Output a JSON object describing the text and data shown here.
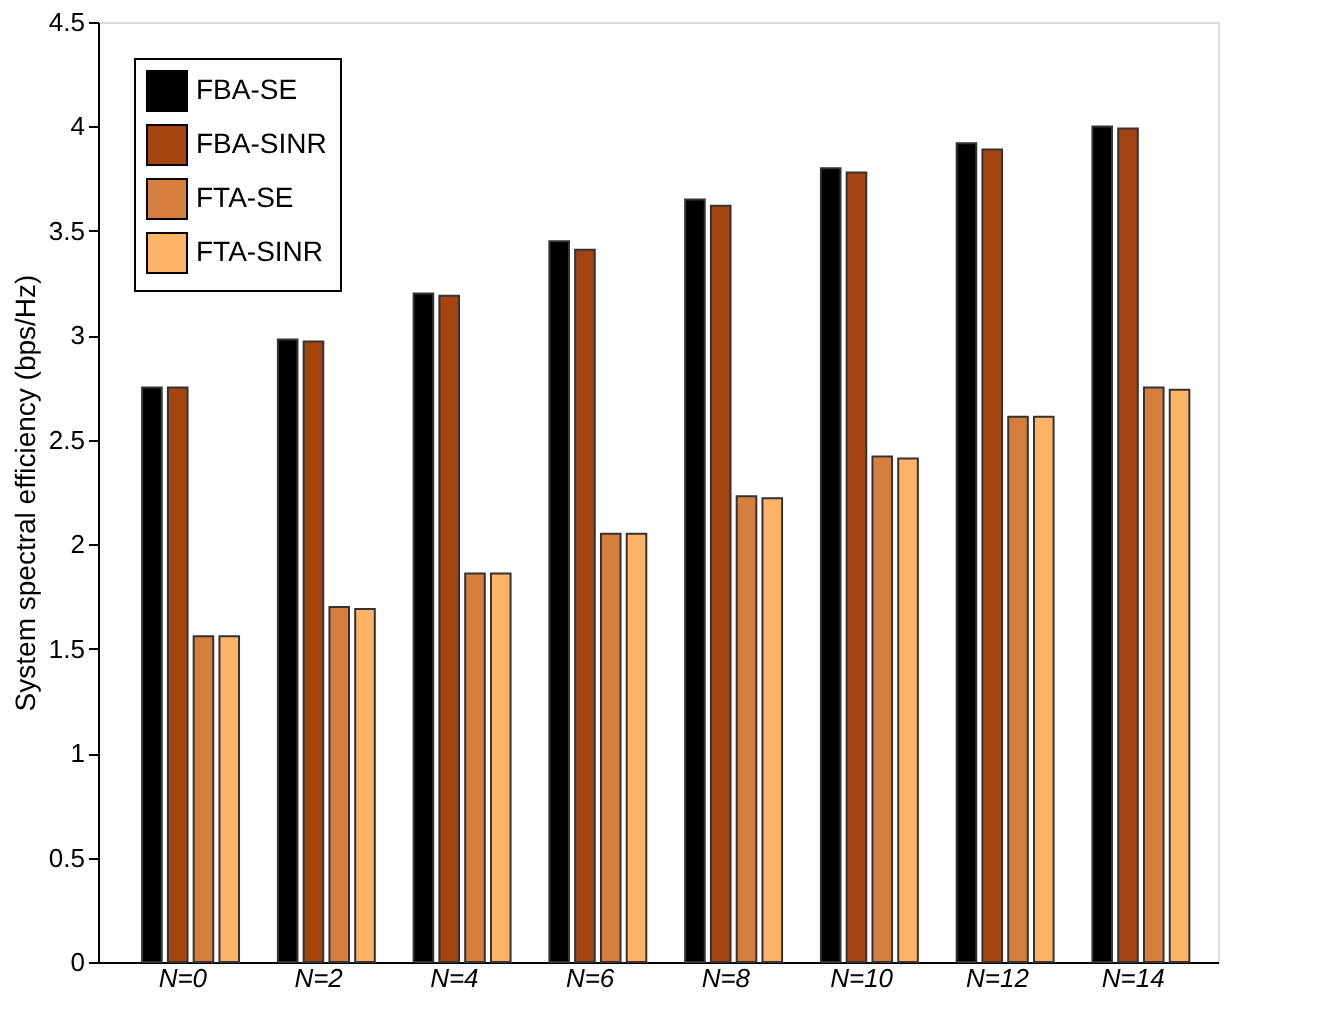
{
  "chart_data": {
    "type": "bar",
    "ylabel": "System spectral efficiency (bps/Hz)",
    "categories": [
      "N=0",
      "N=2",
      "N=4",
      "N=6",
      "N=8",
      "N=10",
      "N=12",
      "N=14"
    ],
    "series": [
      {
        "name": "FBA-SE",
        "color": "#000000",
        "values": [
          2.75,
          2.98,
          3.2,
          3.45,
          3.65,
          3.8,
          3.92,
          4.0
        ]
      },
      {
        "name": "FBA-SINR",
        "color": "#a4440f",
        "values": [
          2.75,
          2.97,
          3.19,
          3.41,
          3.62,
          3.78,
          3.89,
          3.99
        ]
      },
      {
        "name": "FTA-SE",
        "color": "#d67e3e",
        "values": [
          1.56,
          1.7,
          1.86,
          2.05,
          2.23,
          2.42,
          2.61,
          2.75
        ]
      },
      {
        "name": "FTA-SINR",
        "color": "#ffb366",
        "values": [
          1.56,
          1.69,
          1.86,
          2.05,
          2.22,
          2.41,
          2.61,
          2.74
        ]
      }
    ],
    "ylim": [
      0,
      4.5
    ],
    "yticks": [
      0,
      0.5,
      1,
      1.5,
      2,
      2.5,
      3,
      3.5,
      4,
      4.5
    ],
    "grid": false,
    "legend": "top left"
  }
}
